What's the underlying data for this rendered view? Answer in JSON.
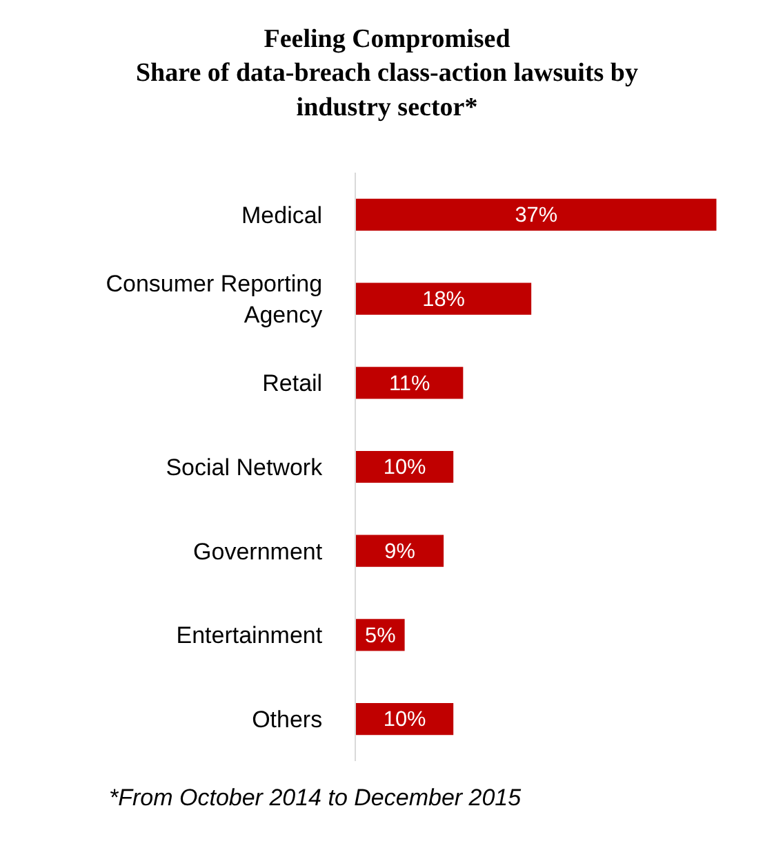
{
  "chart_data": {
    "type": "bar",
    "orientation": "horizontal",
    "title": "Feeling Compromised\nShare of data-breach class-action lawsuits by\nindustry sector*",
    "categories": [
      "Medical",
      "Consumer Reporting Agency",
      "Retail",
      "Social Network",
      "Government",
      "Entertainment",
      "Others"
    ],
    "values": [
      37,
      18,
      11,
      10,
      9,
      5,
      10
    ],
    "value_labels": [
      "37%",
      "18%",
      "11%",
      "10%",
      "9%",
      "5%",
      "10%"
    ],
    "color": "#c00000",
    "annotations": [
      "*From October 2014 to December 2015"
    ]
  }
}
